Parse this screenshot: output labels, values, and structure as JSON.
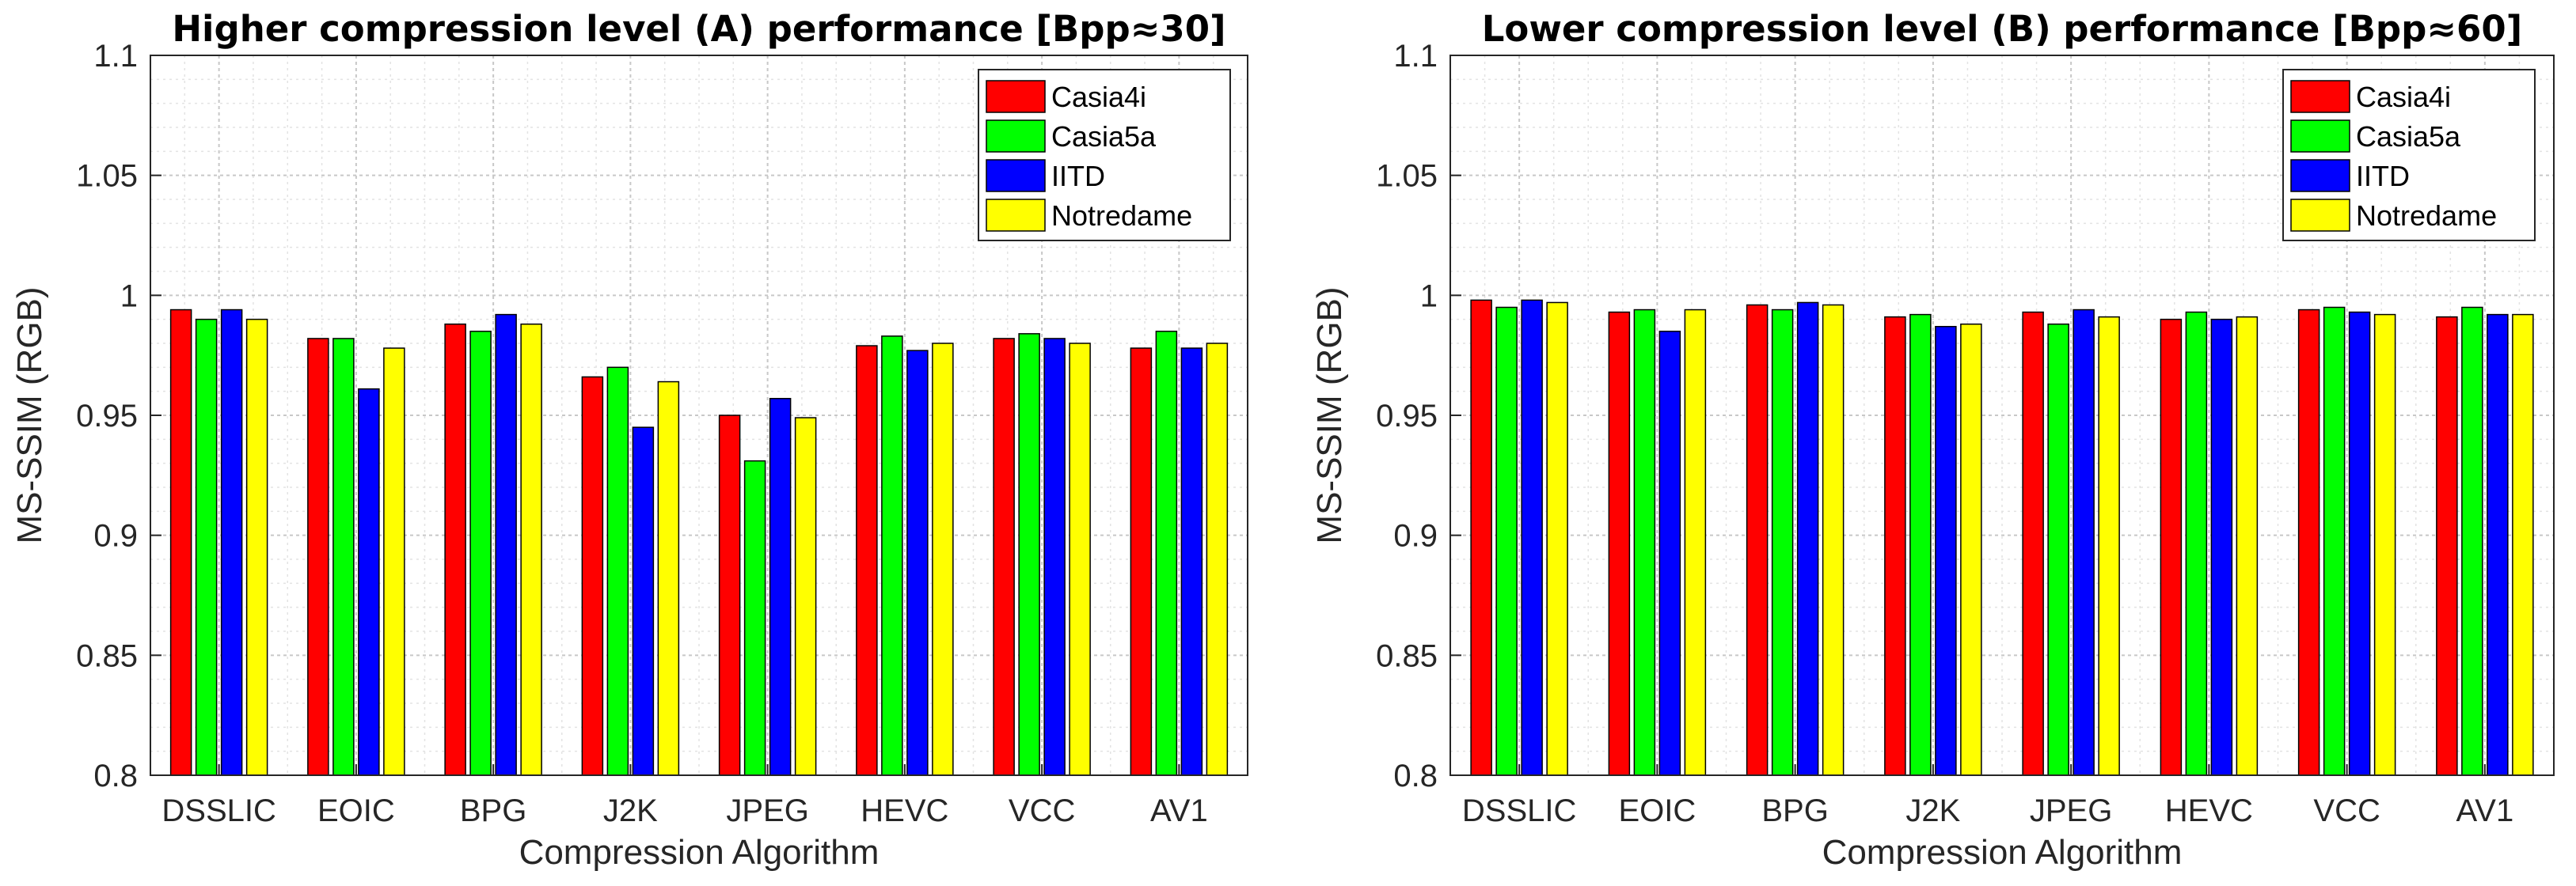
{
  "chart_data": [
    {
      "type": "bar",
      "title": "Higher compression level (A) performance [Bpp≈30]",
      "xlabel": "Compression Algorithm",
      "ylabel": "MS-SSIM (RGB)",
      "ylim": [
        0.8,
        1.1
      ],
      "yticks": [
        "0.8",
        "0.85",
        "0.9",
        "0.95",
        "1",
        "1.05",
        "1.1"
      ],
      "grid": true,
      "legend_position": "top-right",
      "categories": [
        "DSSLIC",
        "EOIC",
        "BPG",
        "J2K",
        "JPEG",
        "HEVC",
        "VCC",
        "AV1"
      ],
      "series": [
        {
          "name": "Casia4i",
          "color": "#ff0000",
          "values": [
            0.994,
            0.982,
            0.988,
            0.966,
            0.95,
            0.979,
            0.982,
            0.978
          ]
        },
        {
          "name": "Casia5a",
          "color": "#00ff00",
          "values": [
            0.99,
            0.982,
            0.985,
            0.97,
            0.931,
            0.983,
            0.984,
            0.985
          ]
        },
        {
          "name": "IITD",
          "color": "#0000ff",
          "values": [
            0.994,
            0.961,
            0.992,
            0.945,
            0.957,
            0.977,
            0.982,
            0.978
          ]
        },
        {
          "name": "Notredame",
          "color": "#ffff00",
          "values": [
            0.99,
            0.978,
            0.988,
            0.964,
            0.949,
            0.98,
            0.98,
            0.98
          ]
        }
      ]
    },
    {
      "type": "bar",
      "title": "Lower compression level (B) performance [Bpp≈60]",
      "xlabel": "Compression Algorithm",
      "ylabel": "MS-SSIM (RGB)",
      "ylim": [
        0.8,
        1.1
      ],
      "yticks": [
        "0.8",
        "0.85",
        "0.9",
        "0.95",
        "1",
        "1.05",
        "1.1"
      ],
      "grid": true,
      "legend_position": "top-right",
      "categories": [
        "DSSLIC",
        "EOIC",
        "BPG",
        "J2K",
        "JPEG",
        "HEVC",
        "VCC",
        "AV1"
      ],
      "series": [
        {
          "name": "Casia4i",
          "color": "#ff0000",
          "values": [
            0.998,
            0.993,
            0.996,
            0.991,
            0.993,
            0.99,
            0.994,
            0.991
          ]
        },
        {
          "name": "Casia5a",
          "color": "#00ff00",
          "values": [
            0.995,
            0.994,
            0.994,
            0.992,
            0.988,
            0.993,
            0.995,
            0.995
          ]
        },
        {
          "name": "IITD",
          "color": "#0000ff",
          "values": [
            0.998,
            0.985,
            0.997,
            0.987,
            0.994,
            0.99,
            0.993,
            0.992
          ]
        },
        {
          "name": "Notredame",
          "color": "#ffff00",
          "values": [
            0.997,
            0.994,
            0.996,
            0.988,
            0.991,
            0.991,
            0.992,
            0.992
          ]
        }
      ]
    }
  ]
}
